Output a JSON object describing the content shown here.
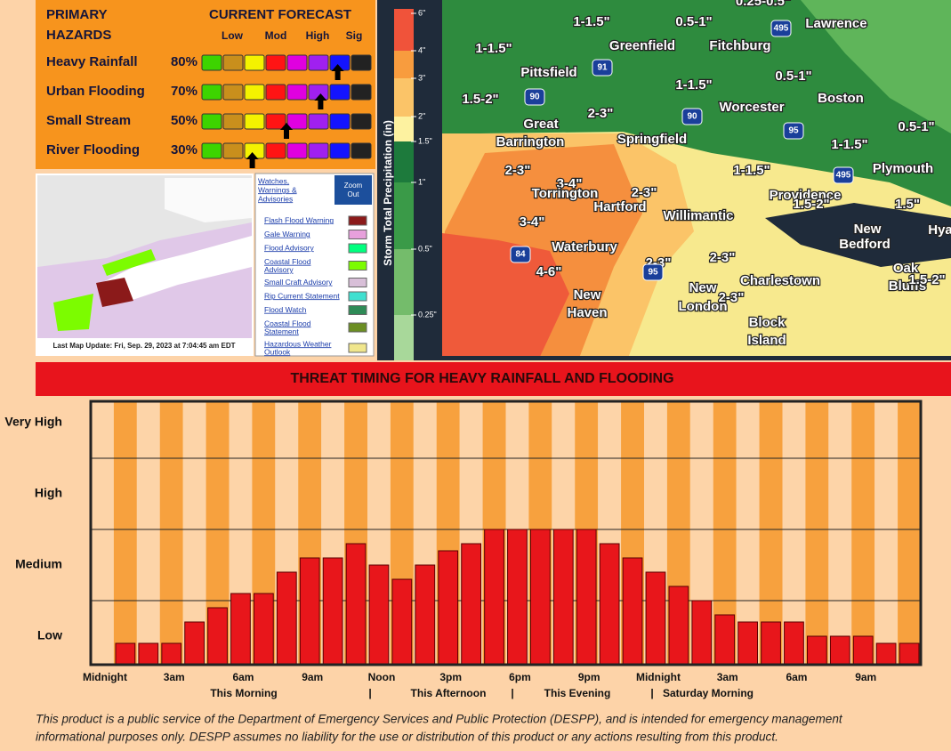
{
  "hazards": {
    "heading": [
      "PRIMARY",
      "HAZARDS"
    ],
    "forecast_heading": "CURRENT FORECAST",
    "levels": [
      "Low",
      "Mod",
      "High",
      "Sig"
    ],
    "names": [
      "Heavy Rainfall",
      "Urban Flooding",
      "Small Stream",
      "River Flooding"
    ],
    "values": [
      80,
      70,
      50,
      30
    ],
    "value_labels": [
      "80%",
      "70%",
      "50%",
      "30%"
    ],
    "colors": [
      "#3dd400",
      "#c98f1c",
      "#f4f200",
      "#ff1414",
      "#e000e0",
      "#a020f0",
      "#1414ff",
      "#222222"
    ]
  },
  "warnings_map": {
    "title": [
      "Watches,",
      "Warnings &",
      "Advisories"
    ],
    "zoom": [
      "Zoom",
      "Out"
    ],
    "legend": [
      {
        "name": [
          "Flash Flood Warning"
        ],
        "color": "#8b1a1a"
      },
      {
        "name": [
          "Gale Warning"
        ],
        "color": "#e7a0dc"
      },
      {
        "name": [
          "Flood Advisory"
        ],
        "color": "#00ff7f"
      },
      {
        "name": [
          "Coastal Flood",
          "Advisory"
        ],
        "color": "#7cfc00"
      },
      {
        "name": [
          "Small Craft Advisory"
        ],
        "color": "#d8bfd8"
      },
      {
        "name": [
          "Rip Current Statement"
        ],
        "color": "#40e0d0"
      },
      {
        "name": [
          "Flood Watch"
        ],
        "color": "#2e8b57"
      },
      {
        "name": [
          "Coastal Flood",
          "Statement"
        ],
        "color": "#6b8e23"
      },
      {
        "name": [
          "Hazardous Weather",
          "Outlook"
        ],
        "color": "#f0e68c"
      }
    ],
    "update": "Last Map Update: Fri, Sep. 29, 2023 at 7:04:45 am EDT"
  },
  "precip": {
    "title": "Storm Total Precipitation (in)",
    "ticks": [
      {
        "value": 6,
        "label": "6\""
      },
      {
        "value": 4,
        "label": "4\""
      },
      {
        "value": 3,
        "label": "3\""
      },
      {
        "value": 2,
        "label": "2\""
      },
      {
        "value": 1.5,
        "label": "1.5\""
      },
      {
        "value": 1,
        "label": "1\""
      },
      {
        "value": 0.5,
        "label": "0.5\""
      },
      {
        "value": 0.25,
        "label": "0.25\""
      }
    ],
    "colors": [
      "#f0533a",
      "#f89c3e",
      "#fbc468",
      "#fdf2a0",
      "#1d7a3c",
      "#3a9a48",
      "#74bc6b",
      "#a8d89a"
    ]
  },
  "map": {
    "labels": [
      "0.25-0.5\"",
      "1-1.5\"",
      "0.5-1\"",
      "Lawrence",
      "Greenfield",
      "Fitchburg",
      "1-1.5\"",
      "Pittsfield",
      "1-1.5\"",
      "0.5-1\"",
      "Boston",
      "1.5-2\"",
      "Worcester",
      "0.5-1\"",
      "Great",
      "Barrington",
      "2-3\"",
      "Springfield",
      "1-1.5\"",
      "Plymouth",
      "2-3\"",
      "3-4\"",
      "Torrington",
      "2-3\"",
      "Hartford",
      "1-1.5\"",
      "Providence",
      "1.5-2\"",
      "1.5\"",
      "Willimantic",
      "3-4\"",
      "New",
      "Bedford",
      "Hya",
      "Waterbury",
      "2-3\"",
      "2-3\"",
      "4-6\"",
      "Oak",
      "Bluffs",
      "1.5-2\"",
      "Charlestown",
      "New",
      "London",
      "2-3\"",
      "New",
      "Haven",
      "Block",
      "Island",
      "495",
      "91",
      "90",
      "90",
      "95",
      "495",
      "84",
      "95"
    ]
  },
  "chart_data": {
    "type": "bar",
    "title": "THREAT TIMING FOR HEAVY RAINFALL AND FLOODING",
    "color": "#e8161b",
    "categories": [
      "Midnight",
      null,
      null,
      "3am",
      null,
      null,
      "6am",
      null,
      null,
      "9am",
      null,
      null,
      "Noon",
      null,
      null,
      "3pm",
      null,
      null,
      "6pm",
      null,
      null,
      "9pm",
      null,
      null,
      "Midnight",
      null,
      null,
      "3am",
      null,
      null,
      "6am",
      null,
      null,
      "9am",
      null,
      null
    ],
    "values": [
      null,
      0.9,
      0.9,
      0.9,
      1.2,
      1.4,
      1.6,
      1.6,
      1.9,
      2.1,
      2.1,
      2.3,
      2.0,
      1.8,
      2.0,
      2.2,
      2.3,
      2.5,
      2.5,
      2.5,
      2.5,
      2.5,
      2.3,
      2.1,
      1.9,
      1.7,
      1.5,
      1.3,
      1.2,
      1.2,
      1.2,
      1.0,
      1.0,
      1.0,
      0.9,
      0.9
    ],
    "ylim": [
      0.6,
      4.3
    ],
    "yticks": [
      {
        "value": 1,
        "label": "Low"
      },
      {
        "value": 2,
        "label": "Medium"
      },
      {
        "value": 3,
        "label": "High"
      },
      {
        "value": 4,
        "label": "Very High"
      }
    ],
    "periods": [
      "This Morning",
      "|",
      "This Afternoon",
      "|",
      "This Evening",
      "|",
      "Saturday Morning"
    ],
    "stripe_colors": [
      "#fdd4a8",
      "#f7a13e"
    ]
  },
  "footer": [
    "This product is a public service of the Department of Emergency Services and Public Protection (DESPP), and is intended for emergency management",
    "informational purposes only.  DESPP assumes no liability for the use or distribution of this product or any actions resulting from this product."
  ]
}
